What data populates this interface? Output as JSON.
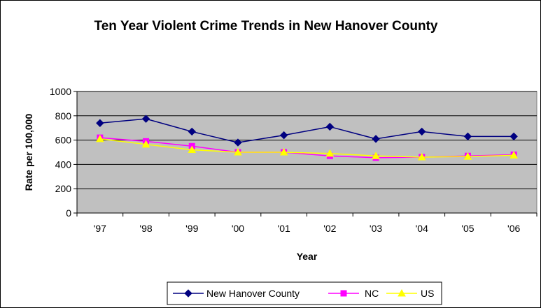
{
  "chart_data": {
    "type": "line",
    "title": "Ten Year Violent Crime Trends in New Hanover County",
    "xlabel": "Year",
    "ylabel": "Rate per 100,000",
    "categories": [
      "'97",
      "'98",
      "'99",
      "'00",
      "'01",
      "'02",
      "'03",
      "'04",
      "'05",
      "'06"
    ],
    "ylim": [
      0,
      1000
    ],
    "yticks": [
      0,
      200,
      400,
      600,
      800,
      1000
    ],
    "grid": true,
    "legend_position": "bottom",
    "plot_background": "#c0c0c0",
    "series": [
      {
        "name": "New Hanover County",
        "color": "#000080",
        "marker": "diamond",
        "values": [
          740,
          775,
          670,
          580,
          640,
          710,
          610,
          670,
          630,
          630
        ]
      },
      {
        "name": "NC",
        "color": "#ff00ff",
        "marker": "square",
        "values": [
          620,
          590,
          550,
          500,
          500,
          470,
          455,
          460,
          470,
          480
        ]
      },
      {
        "name": "US",
        "color": "#ffff00",
        "marker": "triangle",
        "values": [
          610,
          565,
          520,
          500,
          500,
          490,
          470,
          460,
          465,
          475
        ]
      }
    ]
  }
}
